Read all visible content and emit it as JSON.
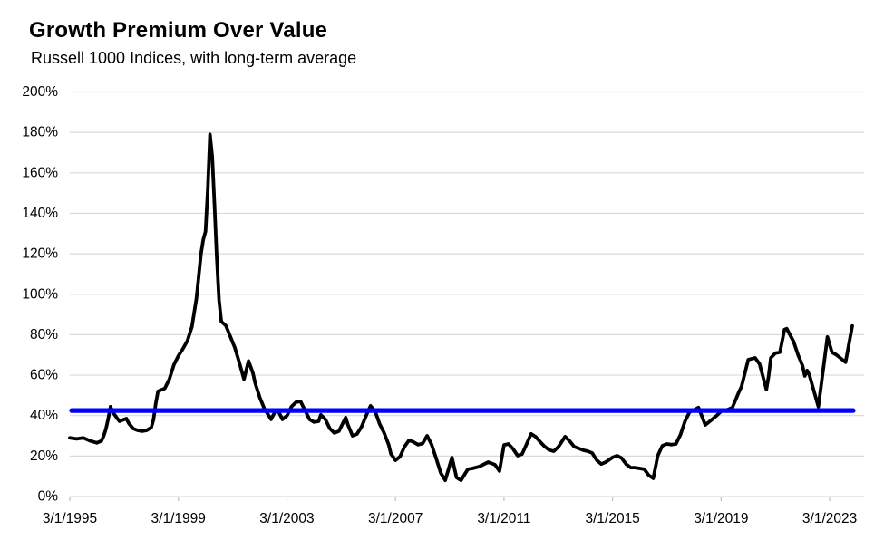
{
  "header": {
    "title": "Growth Premium Over Value",
    "subtitle": "Russell 1000 Indices, with long-term average"
  },
  "chart_data": {
    "type": "line",
    "title": "Growth Premium Over Value",
    "subtitle": "Russell 1000 Indices, with long-term average",
    "ylabel": "",
    "xlabel": "",
    "ylim": [
      0,
      200
    ],
    "y_step": 20,
    "grid": true,
    "legend_position": "none",
    "y_tick_labels": [
      "0%",
      "20%",
      "40%",
      "60%",
      "80%",
      "100%",
      "120%",
      "140%",
      "160%",
      "180%",
      "200%"
    ],
    "x_tick_labels": [
      "3/1/1995",
      "3/1/1999",
      "3/1/2003",
      "3/1/2007",
      "3/1/2011",
      "3/1/2015",
      "3/1/2019",
      "3/1/2023"
    ],
    "x_tick_interval_months": 48,
    "x_start": "1995-03",
    "x_end": "2024-01",
    "average_line": {
      "name": "long-term average",
      "value": 42.5,
      "color": "#0000FF"
    },
    "series": [
      {
        "name": "Growth premium over value (Russell 1000)",
        "color": "#000000",
        "points": [
          [
            "1995-03",
            29
          ],
          [
            "1995-06",
            28.5
          ],
          [
            "1995-09",
            29
          ],
          [
            "1995-12",
            27.5
          ],
          [
            "1996-03",
            26.5
          ],
          [
            "1996-05",
            27.5
          ],
          [
            "1996-06",
            30
          ],
          [
            "1996-07",
            33.5
          ],
          [
            "1996-08",
            38.5
          ],
          [
            "1996-09",
            44.4
          ],
          [
            "1996-10",
            41.7
          ],
          [
            "1996-12",
            38.5
          ],
          [
            "1997-01",
            37.2
          ],
          [
            "1997-03",
            38.1
          ],
          [
            "1997-04",
            38.5
          ],
          [
            "1997-05",
            36.3
          ],
          [
            "1997-07",
            33.6
          ],
          [
            "1997-09",
            32.7
          ],
          [
            "1997-11",
            32.3
          ],
          [
            "1998-01",
            32.7
          ],
          [
            "1998-03",
            34.1
          ],
          [
            "1998-04",
            38
          ],
          [
            "1998-05",
            46
          ],
          [
            "1998-06",
            52
          ],
          [
            "1998-07",
            52.5
          ],
          [
            "1998-09",
            53.5
          ],
          [
            "1998-11",
            58
          ],
          [
            "1999-01",
            65
          ],
          [
            "1999-03",
            69.5
          ],
          [
            "1999-05",
            73
          ],
          [
            "1999-07",
            77
          ],
          [
            "1999-09",
            84
          ],
          [
            "1999-11",
            98
          ],
          [
            "2000-01",
            120
          ],
          [
            "2000-02",
            127
          ],
          [
            "2000-03",
            131
          ],
          [
            "2000-04",
            152
          ],
          [
            "2000-05",
            179
          ],
          [
            "2000-06",
            168
          ],
          [
            "2000-07",
            144
          ],
          [
            "2000-08",
            118
          ],
          [
            "2000-09",
            97
          ],
          [
            "2000-10",
            86.5
          ],
          [
            "2000-12",
            84.5
          ],
          [
            "2001-02",
            79
          ],
          [
            "2001-04",
            73.5
          ],
          [
            "2001-06",
            66
          ],
          [
            "2001-08",
            58
          ],
          [
            "2001-10",
            67
          ],
          [
            "2001-12",
            61
          ],
          [
            "2002-01",
            56
          ],
          [
            "2002-03",
            49
          ],
          [
            "2002-05",
            43.5
          ],
          [
            "2002-08",
            38.1
          ],
          [
            "2002-10",
            42.5
          ],
          [
            "2002-11",
            42.6
          ],
          [
            "2003-01",
            38.1
          ],
          [
            "2003-03",
            39.9
          ],
          [
            "2003-05",
            44.4
          ],
          [
            "2003-07",
            46.6
          ],
          [
            "2003-09",
            47.1
          ],
          [
            "2003-11",
            42.6
          ],
          [
            "2004-01",
            38.1
          ],
          [
            "2004-03",
            36.8
          ],
          [
            "2004-05",
            37.2
          ],
          [
            "2004-06",
            40.4
          ],
          [
            "2004-08",
            38.1
          ],
          [
            "2004-10",
            33.6
          ],
          [
            "2004-12",
            31.4
          ],
          [
            "2005-02",
            32.3
          ],
          [
            "2005-04",
            36.8
          ],
          [
            "2005-05",
            39
          ],
          [
            "2005-06",
            35.4
          ],
          [
            "2005-08",
            30
          ],
          [
            "2005-10",
            30.9
          ],
          [
            "2005-12",
            34.5
          ],
          [
            "2006-02",
            39.9
          ],
          [
            "2006-03",
            42.6
          ],
          [
            "2006-04",
            44.8
          ],
          [
            "2006-06",
            42.2
          ],
          [
            "2006-08",
            35.9
          ],
          [
            "2006-10",
            31.4
          ],
          [
            "2006-12",
            25.6
          ],
          [
            "2007-01",
            21.1
          ],
          [
            "2007-03",
            17.9
          ],
          [
            "2007-05",
            19.7
          ],
          [
            "2007-07",
            24.7
          ],
          [
            "2007-09",
            27.8
          ],
          [
            "2007-11",
            26.9
          ],
          [
            "2008-01",
            25.6
          ],
          [
            "2008-03",
            26.2
          ],
          [
            "2008-05",
            30
          ],
          [
            "2008-07",
            25.6
          ],
          [
            "2008-09",
            18.8
          ],
          [
            "2008-11",
            11.7
          ],
          [
            "2009-01",
            8
          ],
          [
            "2009-04",
            19.3
          ],
          [
            "2009-06",
            9.4
          ],
          [
            "2009-08",
            8
          ],
          [
            "2009-11",
            13.5
          ],
          [
            "2010-01",
            13.9
          ],
          [
            "2010-04",
            14.8
          ],
          [
            "2010-08",
            17
          ],
          [
            "2010-11",
            15.7
          ],
          [
            "2011-01",
            12.6
          ],
          [
            "2011-03",
            25.5
          ],
          [
            "2011-05",
            26
          ],
          [
            "2011-07",
            23.5
          ],
          [
            "2011-09",
            20.2
          ],
          [
            "2011-11",
            21
          ],
          [
            "2012-01",
            26
          ],
          [
            "2012-03",
            31
          ],
          [
            "2012-05",
            29.5
          ],
          [
            "2012-07",
            27
          ],
          [
            "2012-09",
            24.7
          ],
          [
            "2012-11",
            23
          ],
          [
            "2013-01",
            22.4
          ],
          [
            "2013-03",
            24.5
          ],
          [
            "2013-06",
            29.6
          ],
          [
            "2013-08",
            27.4
          ],
          [
            "2013-10",
            24.7
          ],
          [
            "2013-12",
            23.8
          ],
          [
            "2014-02",
            22.9
          ],
          [
            "2014-04",
            22.4
          ],
          [
            "2014-06",
            21.5
          ],
          [
            "2014-08",
            17.9
          ],
          [
            "2014-10",
            16.1
          ],
          [
            "2014-12",
            17
          ],
          [
            "2015-03",
            19.3
          ],
          [
            "2015-05",
            20.2
          ],
          [
            "2015-07",
            19
          ],
          [
            "2015-09",
            16
          ],
          [
            "2015-11",
            14.3
          ],
          [
            "2016-01",
            14.3
          ],
          [
            "2016-03",
            13.9
          ],
          [
            "2016-05",
            13.5
          ],
          [
            "2016-07",
            10.5
          ],
          [
            "2016-09",
            9
          ],
          [
            "2016-11",
            20.2
          ],
          [
            "2017-01",
            25.1
          ],
          [
            "2017-03",
            26
          ],
          [
            "2017-05",
            25.6
          ],
          [
            "2017-07",
            26
          ],
          [
            "2017-09",
            30.5
          ],
          [
            "2017-11",
            37.2
          ],
          [
            "2018-01",
            41.7
          ],
          [
            "2018-05",
            44
          ],
          [
            "2018-08",
            35.4
          ],
          [
            "2018-10",
            37.2
          ],
          [
            "2019-01",
            40
          ],
          [
            "2019-03",
            42.1
          ],
          [
            "2019-06",
            43
          ],
          [
            "2019-08",
            44
          ],
          [
            "2019-11",
            52
          ],
          [
            "2019-12",
            54.3
          ],
          [
            "2020-03",
            67.7
          ],
          [
            "2020-06",
            68.6
          ],
          [
            "2020-08",
            65.5
          ],
          [
            "2020-11",
            52.9
          ],
          [
            "2020-12",
            59.6
          ],
          [
            "2021-01",
            68.6
          ],
          [
            "2021-03",
            70.9
          ],
          [
            "2021-05",
            71.3
          ],
          [
            "2021-07",
            82.5
          ],
          [
            "2021-08",
            83
          ],
          [
            "2021-11",
            76.7
          ],
          [
            "2022-01",
            70
          ],
          [
            "2022-03",
            64.6
          ],
          [
            "2022-04",
            59.6
          ],
          [
            "2022-05",
            62.3
          ],
          [
            "2022-06",
            60.1
          ],
          [
            "2022-10",
            44.4
          ],
          [
            "2023-02",
            78.9
          ],
          [
            "2023-04",
            71.3
          ],
          [
            "2023-06",
            70
          ],
          [
            "2023-07",
            69.1
          ],
          [
            "2023-10",
            66.4
          ],
          [
            "2024-01",
            84.3
          ]
        ]
      }
    ]
  },
  "colors": {
    "series_line": "#000000",
    "average_line": "#0000FF",
    "gridline": "#d9d9d9",
    "axis": "#bfbfbf",
    "text": "#000000",
    "background": "#ffffff"
  }
}
